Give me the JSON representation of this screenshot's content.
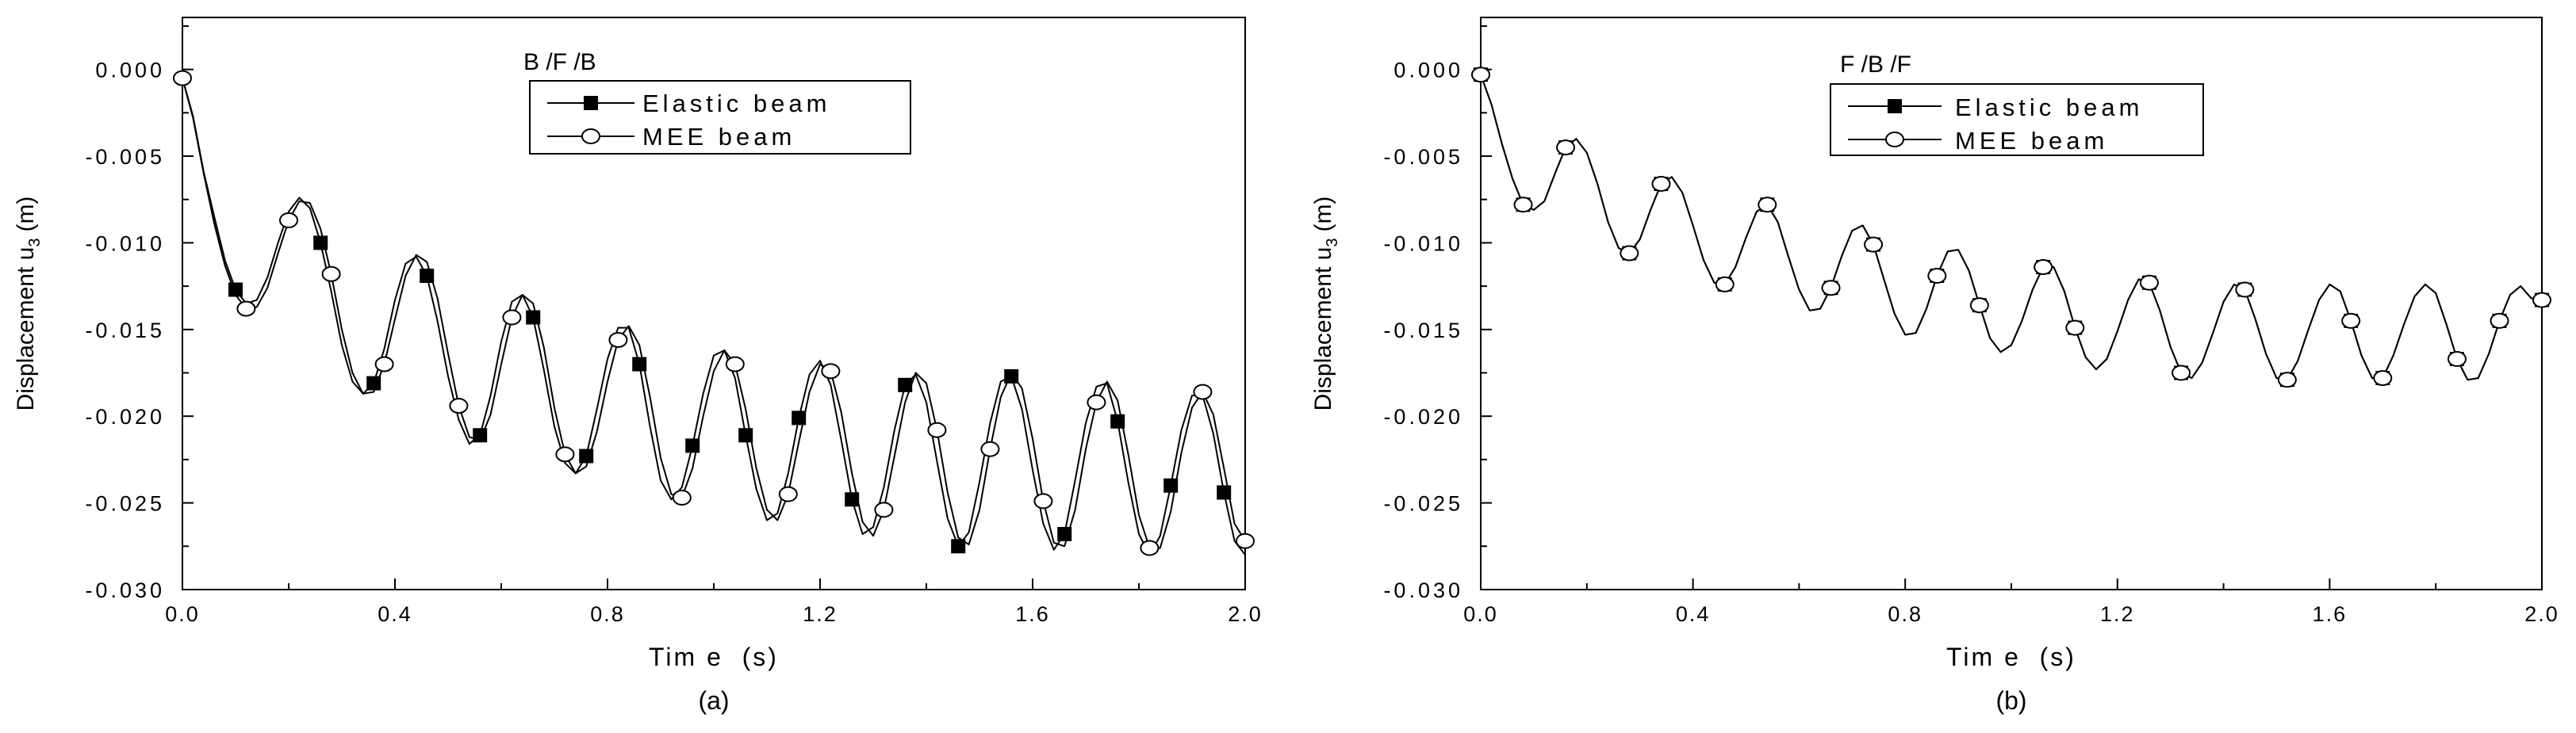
{
  "chart_data": [
    {
      "type": "line",
      "panel_label": "(a)",
      "title": "B /F /B",
      "xlabel": "Tim e  (s)",
      "ylabel": "Displacement u",
      "ylabel_subscript": "3",
      "ylabel_unit": "(m)",
      "xlim": [
        0.0,
        2.0
      ],
      "ylim": [
        -0.03,
        0.003
      ],
      "xticks": [
        "0.0",
        "0.4",
        "0.8",
        "1.2",
        "1.6",
        "2.0"
      ],
      "yticks": [
        "0.000",
        "-0.005",
        "-0.010",
        "-0.015",
        "-0.020",
        "-0.025",
        "-0.030"
      ],
      "legend": {
        "position": "top-center",
        "entries": [
          "Elastic beam",
          "MEE beam"
        ]
      },
      "series": [
        {
          "name": "Elastic beam",
          "marker": "filled-square",
          "color": "#000000",
          "x": [
            0.0,
            0.02,
            0.04,
            0.06,
            0.08,
            0.1,
            0.12,
            0.14,
            0.16,
            0.18,
            0.2,
            0.22,
            0.24,
            0.26,
            0.28,
            0.3,
            0.32,
            0.34,
            0.36,
            0.38,
            0.4,
            0.42,
            0.44,
            0.46,
            0.48,
            0.5,
            0.52,
            0.54,
            0.56,
            0.58,
            0.6,
            0.62,
            0.64,
            0.66,
            0.68,
            0.7,
            0.72,
            0.74,
            0.76,
            0.78,
            0.8,
            0.82,
            0.84,
            0.86,
            0.88,
            0.9,
            0.92,
            0.94,
            0.96,
            0.98,
            1.0,
            1.02,
            1.04,
            1.06,
            1.08,
            1.1,
            1.12,
            1.14,
            1.16,
            1.18,
            1.2,
            1.22,
            1.24,
            1.26,
            1.28,
            1.3,
            1.32,
            1.34,
            1.36,
            1.38,
            1.4,
            1.42,
            1.44,
            1.46,
            1.48,
            1.5,
            1.52,
            1.54,
            1.56,
            1.58,
            1.6,
            1.62,
            1.64,
            1.66,
            1.68,
            1.7,
            1.72,
            1.74,
            1.76,
            1.78,
            1.8,
            1.82,
            1.84,
            1.86,
            1.88,
            1.9,
            1.92,
            1.94,
            1.96,
            1.98,
            2.0
          ],
          "y": [
            -0.0005,
            -0.0027,
            -0.0059,
            -0.0085,
            -0.011,
            -0.0127,
            -0.0135,
            -0.0133,
            -0.012,
            -0.01,
            -0.0082,
            -0.0074,
            -0.008,
            -0.01,
            -0.0128,
            -0.0159,
            -0.018,
            -0.0187,
            -0.0181,
            -0.0161,
            -0.0133,
            -0.0112,
            -0.0108,
            -0.0119,
            -0.0145,
            -0.0177,
            -0.0202,
            -0.0216,
            -0.0211,
            -0.0188,
            -0.0157,
            -0.0134,
            -0.013,
            -0.0143,
            -0.0173,
            -0.0206,
            -0.0227,
            -0.0233,
            -0.0223,
            -0.0196,
            -0.0167,
            -0.0149,
            -0.0149,
            -0.017,
            -0.0206,
            -0.0237,
            -0.0248,
            -0.0241,
            -0.0217,
            -0.0187,
            -0.0165,
            -0.0162,
            -0.0178,
            -0.0211,
            -0.0242,
            -0.026,
            -0.0256,
            -0.0233,
            -0.0201,
            -0.0176,
            -0.0168,
            -0.0182,
            -0.0214,
            -0.0248,
            -0.0268,
            -0.0264,
            -0.0241,
            -0.0208,
            -0.0182,
            -0.0176,
            -0.0192,
            -0.0226,
            -0.0259,
            -0.0275,
            -0.0267,
            -0.0238,
            -0.0204,
            -0.018,
            -0.0177,
            -0.0196,
            -0.0231,
            -0.0262,
            -0.0277,
            -0.0268,
            -0.0237,
            -0.0204,
            -0.0183,
            -0.0181,
            -0.0203,
            -0.0238,
            -0.0268,
            -0.028,
            -0.0269,
            -0.024,
            -0.0208,
            -0.0188,
            -0.0188,
            -0.021,
            -0.0244,
            -0.0272,
            -0.028
          ],
          "marker_indices": [
            5,
            13,
            18,
            23,
            28,
            33,
            38,
            43,
            48,
            53,
            58,
            63,
            68,
            73,
            78,
            83,
            88,
            93,
            98
          ]
        },
        {
          "name": "MEE beam",
          "marker": "open-circle",
          "color": "#000000",
          "x": [
            0.0,
            0.02,
            0.04,
            0.06,
            0.08,
            0.1,
            0.12,
            0.14,
            0.16,
            0.18,
            0.2,
            0.22,
            0.24,
            0.26,
            0.28,
            0.3,
            0.32,
            0.34,
            0.36,
            0.38,
            0.4,
            0.42,
            0.44,
            0.46,
            0.48,
            0.5,
            0.52,
            0.54,
            0.56,
            0.58,
            0.6,
            0.62,
            0.64,
            0.66,
            0.68,
            0.7,
            0.72,
            0.74,
            0.76,
            0.78,
            0.8,
            0.82,
            0.84,
            0.86,
            0.88,
            0.9,
            0.92,
            0.94,
            0.96,
            0.98,
            1.0,
            1.02,
            1.04,
            1.06,
            1.08,
            1.1,
            1.12,
            1.14,
            1.16,
            1.18,
            1.2,
            1.22,
            1.24,
            1.26,
            1.28,
            1.3,
            1.32,
            1.34,
            1.36,
            1.38,
            1.4,
            1.42,
            1.44,
            1.46,
            1.48,
            1.5,
            1.52,
            1.54,
            1.56,
            1.58,
            1.6,
            1.62,
            1.64,
            1.66,
            1.68,
            1.7,
            1.72,
            1.74,
            1.76,
            1.78,
            1.8,
            1.82,
            1.84,
            1.86,
            1.88,
            1.9,
            1.92,
            1.94,
            1.96,
            1.98,
            2.0
          ],
          "y": [
            -0.0005,
            -0.0028,
            -0.006,
            -0.0089,
            -0.0113,
            -0.013,
            -0.0138,
            -0.0137,
            -0.0126,
            -0.0106,
            -0.0087,
            -0.0076,
            -0.0077,
            -0.0092,
            -0.0118,
            -0.015,
            -0.0175,
            -0.0187,
            -0.0186,
            -0.017,
            -0.0144,
            -0.0119,
            -0.0107,
            -0.0111,
            -0.0132,
            -0.0164,
            -0.0194,
            -0.0212,
            -0.0214,
            -0.0199,
            -0.017,
            -0.0143,
            -0.013,
            -0.0135,
            -0.016,
            -0.0195,
            -0.0222,
            -0.0233,
            -0.0229,
            -0.0209,
            -0.018,
            -0.0156,
            -0.0148,
            -0.0159,
            -0.0189,
            -0.0224,
            -0.0245,
            -0.0247,
            -0.023,
            -0.02,
            -0.0174,
            -0.0162,
            -0.017,
            -0.0196,
            -0.023,
            -0.0254,
            -0.026,
            -0.0245,
            -0.0215,
            -0.0186,
            -0.017,
            -0.0174,
            -0.0198,
            -0.0233,
            -0.0261,
            -0.0269,
            -0.0254,
            -0.0223,
            -0.0192,
            -0.0175,
            -0.0181,
            -0.0208,
            -0.0244,
            -0.027,
            -0.0274,
            -0.0254,
            -0.0219,
            -0.0189,
            -0.0175,
            -0.0184,
            -0.0213,
            -0.0249,
            -0.0273,
            -0.0275,
            -0.0254,
            -0.0219,
            -0.0192,
            -0.018,
            -0.0191,
            -0.0222,
            -0.0257,
            -0.0276,
            -0.0276,
            -0.0255,
            -0.0221,
            -0.0195,
            -0.0186,
            -0.0199,
            -0.023,
            -0.0262,
            -0.0272
          ],
          "marker_indices": [
            0,
            6,
            10,
            14,
            19,
            26,
            31,
            36,
            41,
            47,
            52,
            57,
            61,
            66,
            71,
            76,
            81,
            86,
            91,
            96,
            100
          ]
        }
      ]
    },
    {
      "type": "line",
      "panel_label": "(b)",
      "title": "F /B /F",
      "xlabel": "Tim e  (s)",
      "ylabel": "Displacement u",
      "ylabel_subscript": "3",
      "ylabel_unit": "(m)",
      "xlim": [
        0.0,
        2.0
      ],
      "ylim": [
        -0.03,
        0.003
      ],
      "xticks": [
        "0.0",
        "0.4",
        "0.8",
        "1.2",
        "1.6",
        "2.0"
      ],
      "yticks": [
        "0.000",
        "-0.005",
        "-0.010",
        "-0.015",
        "-0.020",
        "-0.025",
        "-0.030"
      ],
      "legend": {
        "position": "top-center",
        "entries": [
          "Elastic beam",
          "MEE beam"
        ]
      },
      "series": [
        {
          "name": "Elastic beam",
          "marker": "filled-square",
          "color": "#000000",
          "x": [
            0.0,
            0.02,
            0.04,
            0.06,
            0.08,
            0.1,
            0.12,
            0.14,
            0.16,
            0.18,
            0.2,
            0.22,
            0.24,
            0.26,
            0.28,
            0.3,
            0.32,
            0.34,
            0.36,
            0.38,
            0.4,
            0.42,
            0.44,
            0.46,
            0.48,
            0.5,
            0.52,
            0.54,
            0.56,
            0.58,
            0.6,
            0.62,
            0.64,
            0.66,
            0.68,
            0.7,
            0.72,
            0.74,
            0.76,
            0.78,
            0.8,
            0.82,
            0.84,
            0.86,
            0.88,
            0.9,
            0.92,
            0.94,
            0.96,
            0.98,
            1.0,
            1.02,
            1.04,
            1.06,
            1.08,
            1.1,
            1.12,
            1.14,
            1.16,
            1.18,
            1.2,
            1.22,
            1.24,
            1.26,
            1.28,
            1.3,
            1.32,
            1.34,
            1.36,
            1.38,
            1.4,
            1.42,
            1.44,
            1.46,
            1.48,
            1.5,
            1.52,
            1.54,
            1.56,
            1.58,
            1.6,
            1.62,
            1.64,
            1.66,
            1.68,
            1.7,
            1.72,
            1.74,
            1.76,
            1.78,
            1.8,
            1.82,
            1.84,
            1.86,
            1.88,
            1.9,
            1.92,
            1.94,
            1.96,
            1.98,
            2.0
          ],
          "y": [
            -0.0003,
            -0.002,
            -0.0043,
            -0.0063,
            -0.0078,
            -0.0081,
            -0.0076,
            -0.006,
            -0.0045,
            -0.004,
            -0.0048,
            -0.0066,
            -0.0088,
            -0.0103,
            -0.0106,
            -0.0098,
            -0.0081,
            -0.0066,
            -0.0062,
            -0.0071,
            -0.009,
            -0.011,
            -0.0123,
            -0.0124,
            -0.0114,
            -0.0097,
            -0.0082,
            -0.0078,
            -0.0088,
            -0.0108,
            -0.0127,
            -0.0139,
            -0.0138,
            -0.0126,
            -0.0108,
            -0.0093,
            -0.009,
            -0.0101,
            -0.0121,
            -0.0141,
            -0.0153,
            -0.0152,
            -0.0138,
            -0.0119,
            -0.0105,
            -0.0104,
            -0.0116,
            -0.0136,
            -0.0155,
            -0.0163,
            -0.0159,
            -0.0145,
            -0.0127,
            -0.0114,
            -0.0114,
            -0.0128,
            -0.0149,
            -0.0166,
            -0.0173,
            -0.0167,
            -0.0151,
            -0.0133,
            -0.0121,
            -0.0123,
            -0.0139,
            -0.016,
            -0.0175,
            -0.0178,
            -0.0169,
            -0.0152,
            -0.0134,
            -0.0124,
            -0.0127,
            -0.0144,
            -0.0164,
            -0.0178,
            -0.0179,
            -0.0168,
            -0.015,
            -0.0133,
            -0.0124,
            -0.0128,
            -0.0145,
            -0.0165,
            -0.0178,
            -0.0178,
            -0.0165,
            -0.0147,
            -0.0131,
            -0.0124,
            -0.0129,
            -0.0147,
            -0.0167,
            -0.0179,
            -0.0178,
            -0.0164,
            -0.0145,
            -0.013,
            -0.0125,
            -0.0132,
            -0.0133
          ],
          "marker_indices": [
            0,
            4,
            8,
            14,
            17,
            23,
            27,
            33,
            37,
            43,
            47,
            53,
            56,
            63,
            66,
            72,
            76,
            82,
            85,
            92,
            96,
            100
          ]
        },
        {
          "name": "MEE beam",
          "marker": "open-circle",
          "color": "#000000",
          "x": [
            0.0,
            0.02,
            0.04,
            0.06,
            0.08,
            0.1,
            0.12,
            0.14,
            0.16,
            0.18,
            0.2,
            0.22,
            0.24,
            0.26,
            0.28,
            0.3,
            0.32,
            0.34,
            0.36,
            0.38,
            0.4,
            0.42,
            0.44,
            0.46,
            0.48,
            0.5,
            0.52,
            0.54,
            0.56,
            0.58,
            0.6,
            0.62,
            0.64,
            0.66,
            0.68,
            0.7,
            0.72,
            0.74,
            0.76,
            0.78,
            0.8,
            0.82,
            0.84,
            0.86,
            0.88,
            0.9,
            0.92,
            0.94,
            0.96,
            0.98,
            1.0,
            1.02,
            1.04,
            1.06,
            1.08,
            1.1,
            1.12,
            1.14,
            1.16,
            1.18,
            1.2,
            1.22,
            1.24,
            1.26,
            1.28,
            1.3,
            1.32,
            1.34,
            1.36,
            1.38,
            1.4,
            1.42,
            1.44,
            1.46,
            1.48,
            1.5,
            1.52,
            1.54,
            1.56,
            1.58,
            1.6,
            1.62,
            1.64,
            1.66,
            1.68,
            1.7,
            1.72,
            1.74,
            1.76,
            1.78,
            1.8,
            1.82,
            1.84,
            1.86,
            1.88,
            1.9,
            1.92,
            1.94,
            1.96,
            1.98,
            2.0
          ],
          "y": [
            -0.0003,
            -0.002,
            -0.0043,
            -0.0063,
            -0.0078,
            -0.0081,
            -0.0076,
            -0.006,
            -0.0045,
            -0.004,
            -0.0048,
            -0.0066,
            -0.0088,
            -0.0103,
            -0.0106,
            -0.0098,
            -0.0081,
            -0.0066,
            -0.0062,
            -0.0071,
            -0.009,
            -0.011,
            -0.0123,
            -0.0124,
            -0.0114,
            -0.0097,
            -0.0082,
            -0.0078,
            -0.0088,
            -0.0108,
            -0.0127,
            -0.0139,
            -0.0138,
            -0.0126,
            -0.0108,
            -0.0093,
            -0.009,
            -0.0101,
            -0.0121,
            -0.0141,
            -0.0153,
            -0.0152,
            -0.0138,
            -0.0119,
            -0.0105,
            -0.0104,
            -0.0116,
            -0.0136,
            -0.0155,
            -0.0163,
            -0.0159,
            -0.0145,
            -0.0127,
            -0.0114,
            -0.0114,
            -0.0128,
            -0.0149,
            -0.0166,
            -0.0173,
            -0.0167,
            -0.0151,
            -0.0133,
            -0.0121,
            -0.0123,
            -0.0139,
            -0.016,
            -0.0175,
            -0.0178,
            -0.0169,
            -0.0152,
            -0.0134,
            -0.0124,
            -0.0127,
            -0.0144,
            -0.0164,
            -0.0178,
            -0.0179,
            -0.0168,
            -0.015,
            -0.0133,
            -0.0124,
            -0.0128,
            -0.0145,
            -0.0165,
            -0.0178,
            -0.0178,
            -0.0165,
            -0.0147,
            -0.0131,
            -0.0124,
            -0.0129,
            -0.0147,
            -0.0167,
            -0.0179,
            -0.0178,
            -0.0164,
            -0.0145,
            -0.013,
            -0.0125,
            -0.0132,
            -0.0133
          ],
          "marker_indices": [
            0,
            4,
            8,
            14,
            17,
            23,
            27,
            33,
            37,
            43,
            47,
            53,
            56,
            63,
            66,
            72,
            76,
            82,
            85,
            92,
            96,
            100
          ]
        }
      ]
    }
  ]
}
